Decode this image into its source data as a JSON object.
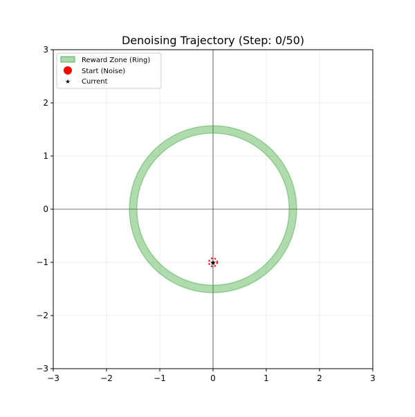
{
  "chart_data": {
    "type": "scatter",
    "title": "Denoising Trajectory (Step: 0/50)",
    "xlabel": "",
    "ylabel": "",
    "xlim": [
      -3,
      3
    ],
    "ylim": [
      -3,
      3
    ],
    "xticks": [
      "−3",
      "−2",
      "−1",
      "0",
      "1",
      "2",
      "3"
    ],
    "yticks": [
      "−3",
      "−2",
      "−1",
      "0",
      "1",
      "2",
      "3"
    ],
    "grid": true,
    "legend_position": "top-left",
    "reward_zone": {
      "name": "Reward Zone (Ring)",
      "center": [
        0,
        0
      ],
      "inner_radius": 1.43,
      "outer_radius": 1.57,
      "color": "#2ca02c"
    },
    "start": {
      "name": "Start (Noise)",
      "x": 0,
      "y": -1,
      "color": "#ff0000"
    },
    "current": {
      "name": "Current",
      "x": 0,
      "y": -1,
      "color": "#4b1d5e"
    }
  }
}
